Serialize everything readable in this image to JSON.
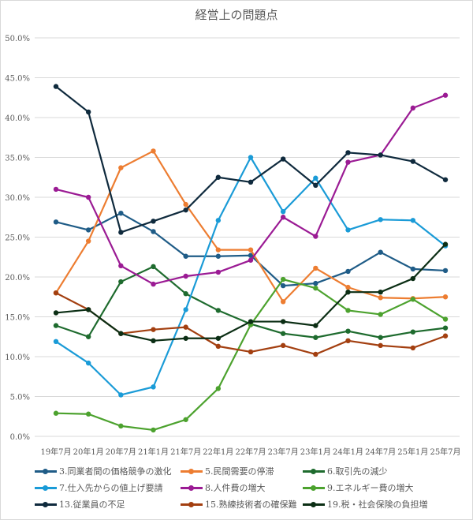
{
  "chart_data": {
    "type": "line",
    "title": "経営上の問題点",
    "xlabel": "",
    "ylabel": "",
    "ylim": [
      0,
      50
    ],
    "y_ticks": [
      "0.0%",
      "5.0%",
      "10.0%",
      "15.0%",
      "20.0%",
      "25.0%",
      "30.0%",
      "35.0%",
      "40.0%",
      "45.0%",
      "50.0%"
    ],
    "y_tick_values": [
      0,
      5,
      10,
      15,
      20,
      25,
      30,
      35,
      40,
      45,
      50
    ],
    "grid": true,
    "legend_position": "bottom",
    "categories": [
      "19年7月",
      "20年1月",
      "20年7月",
      "21年1月",
      "21年7月",
      "22年1月",
      "22年7月",
      "23年7月",
      "23年1月",
      "24年1月",
      "24年7月",
      "25年1月",
      "25年7月"
    ],
    "series": [
      {
        "name": "3.同業者間の価格競争の激化",
        "color": "#1f5c87",
        "values": [
          26.9,
          25.9,
          28.0,
          25.7,
          22.6,
          22.6,
          22.7,
          18.9,
          19.2,
          20.7,
          23.1,
          21.0,
          20.8
        ]
      },
      {
        "name": "5.民間需要の停滞",
        "color": "#ed7d31",
        "values": [
          18.0,
          24.5,
          33.7,
          35.8,
          29.1,
          23.4,
          23.4,
          16.9,
          21.1,
          18.7,
          17.4,
          17.3,
          17.5
        ]
      },
      {
        "name": "6.取引先の減少",
        "color": "#1e6b2e",
        "values": [
          13.9,
          12.5,
          19.4,
          21.3,
          17.9,
          15.8,
          14.1,
          12.9,
          12.4,
          13.2,
          12.4,
          13.1,
          13.6
        ]
      },
      {
        "name": "7.仕入先からの値上げ要請",
        "color": "#1a9bd7",
        "values": [
          11.9,
          9.2,
          5.2,
          6.2,
          15.9,
          27.1,
          35.0,
          28.2,
          32.4,
          25.9,
          27.2,
          27.1,
          23.9
        ]
      },
      {
        "name": "8.人件費の増大",
        "color": "#9b1b94",
        "values": [
          31.0,
          30.0,
          21.4,
          19.1,
          20.1,
          20.6,
          22.1,
          27.5,
          25.1,
          34.4,
          35.3,
          41.2,
          42.8
        ]
      },
      {
        "name": "9.エネルギー費の増大",
        "color": "#4ca22e",
        "values": [
          2.9,
          2.8,
          1.3,
          0.8,
          2.1,
          6.0,
          14.0,
          19.7,
          18.6,
          15.8,
          15.3,
          17.2,
          14.7
        ]
      },
      {
        "name": "13.従業員の不足",
        "color": "#0f2a3d",
        "values": [
          43.9,
          40.7,
          25.6,
          27.0,
          28.4,
          32.5,
          31.9,
          34.8,
          31.5,
          35.6,
          35.3,
          34.5,
          32.2
        ]
      },
      {
        "name": "15.熟練技術者の確保難",
        "color": "#a33f10",
        "values": [
          18.0,
          15.9,
          12.9,
          13.4,
          13.7,
          11.3,
          10.6,
          11.4,
          10.3,
          12.0,
          11.4,
          11.1,
          12.6
        ]
      },
      {
        "name": "19.税・社会保険の負担増",
        "color": "#0b2e14",
        "values": [
          15.5,
          15.9,
          12.9,
          12.0,
          12.3,
          12.3,
          14.4,
          14.4,
          13.9,
          18.1,
          18.1,
          19.8,
          24.1
        ]
      }
    ]
  }
}
